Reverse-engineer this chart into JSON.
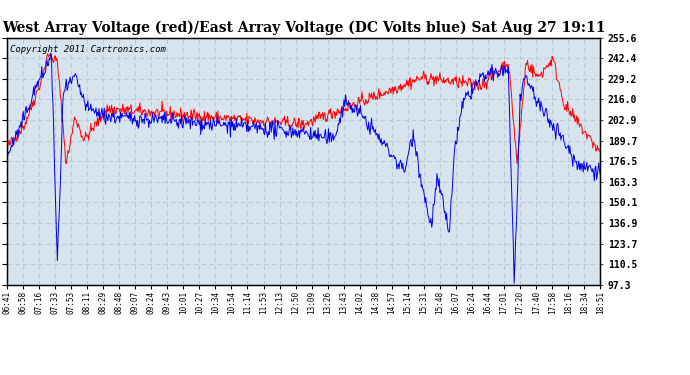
{
  "title": "West Array Voltage (red)/East Array Voltage (DC Volts blue) Sat Aug 27 19:11",
  "copyright": "Copyright 2011 Cartronics.com",
  "ylabel_right_ticks": [
    255.6,
    242.4,
    229.2,
    216.0,
    202.9,
    189.7,
    176.5,
    163.3,
    150.1,
    136.9,
    123.7,
    110.5,
    97.3
  ],
  "x_tick_labels": [
    "06:41",
    "06:58",
    "07:16",
    "07:33",
    "07:53",
    "08:11",
    "08:29",
    "08:48",
    "09:07",
    "09:24",
    "09:43",
    "10:01",
    "10:27",
    "10:34",
    "10:54",
    "11:14",
    "11:53",
    "12:13",
    "12:50",
    "13:09",
    "13:26",
    "13:43",
    "14:02",
    "14:38",
    "14:57",
    "15:14",
    "15:31",
    "15:48",
    "16:07",
    "16:24",
    "16:44",
    "17:01",
    "17:20",
    "17:40",
    "17:58",
    "18:16",
    "18:34",
    "18:51"
  ],
  "ymin": 97.3,
  "ymax": 255.6,
  "bg_color": "#d8e4ed",
  "grid_color": "#b8cad6",
  "line_red": "#ff0000",
  "line_blue": "#0000ee",
  "title_fontsize": 10,
  "copyright_fontsize": 6.5,
  "border_color": "#000000"
}
